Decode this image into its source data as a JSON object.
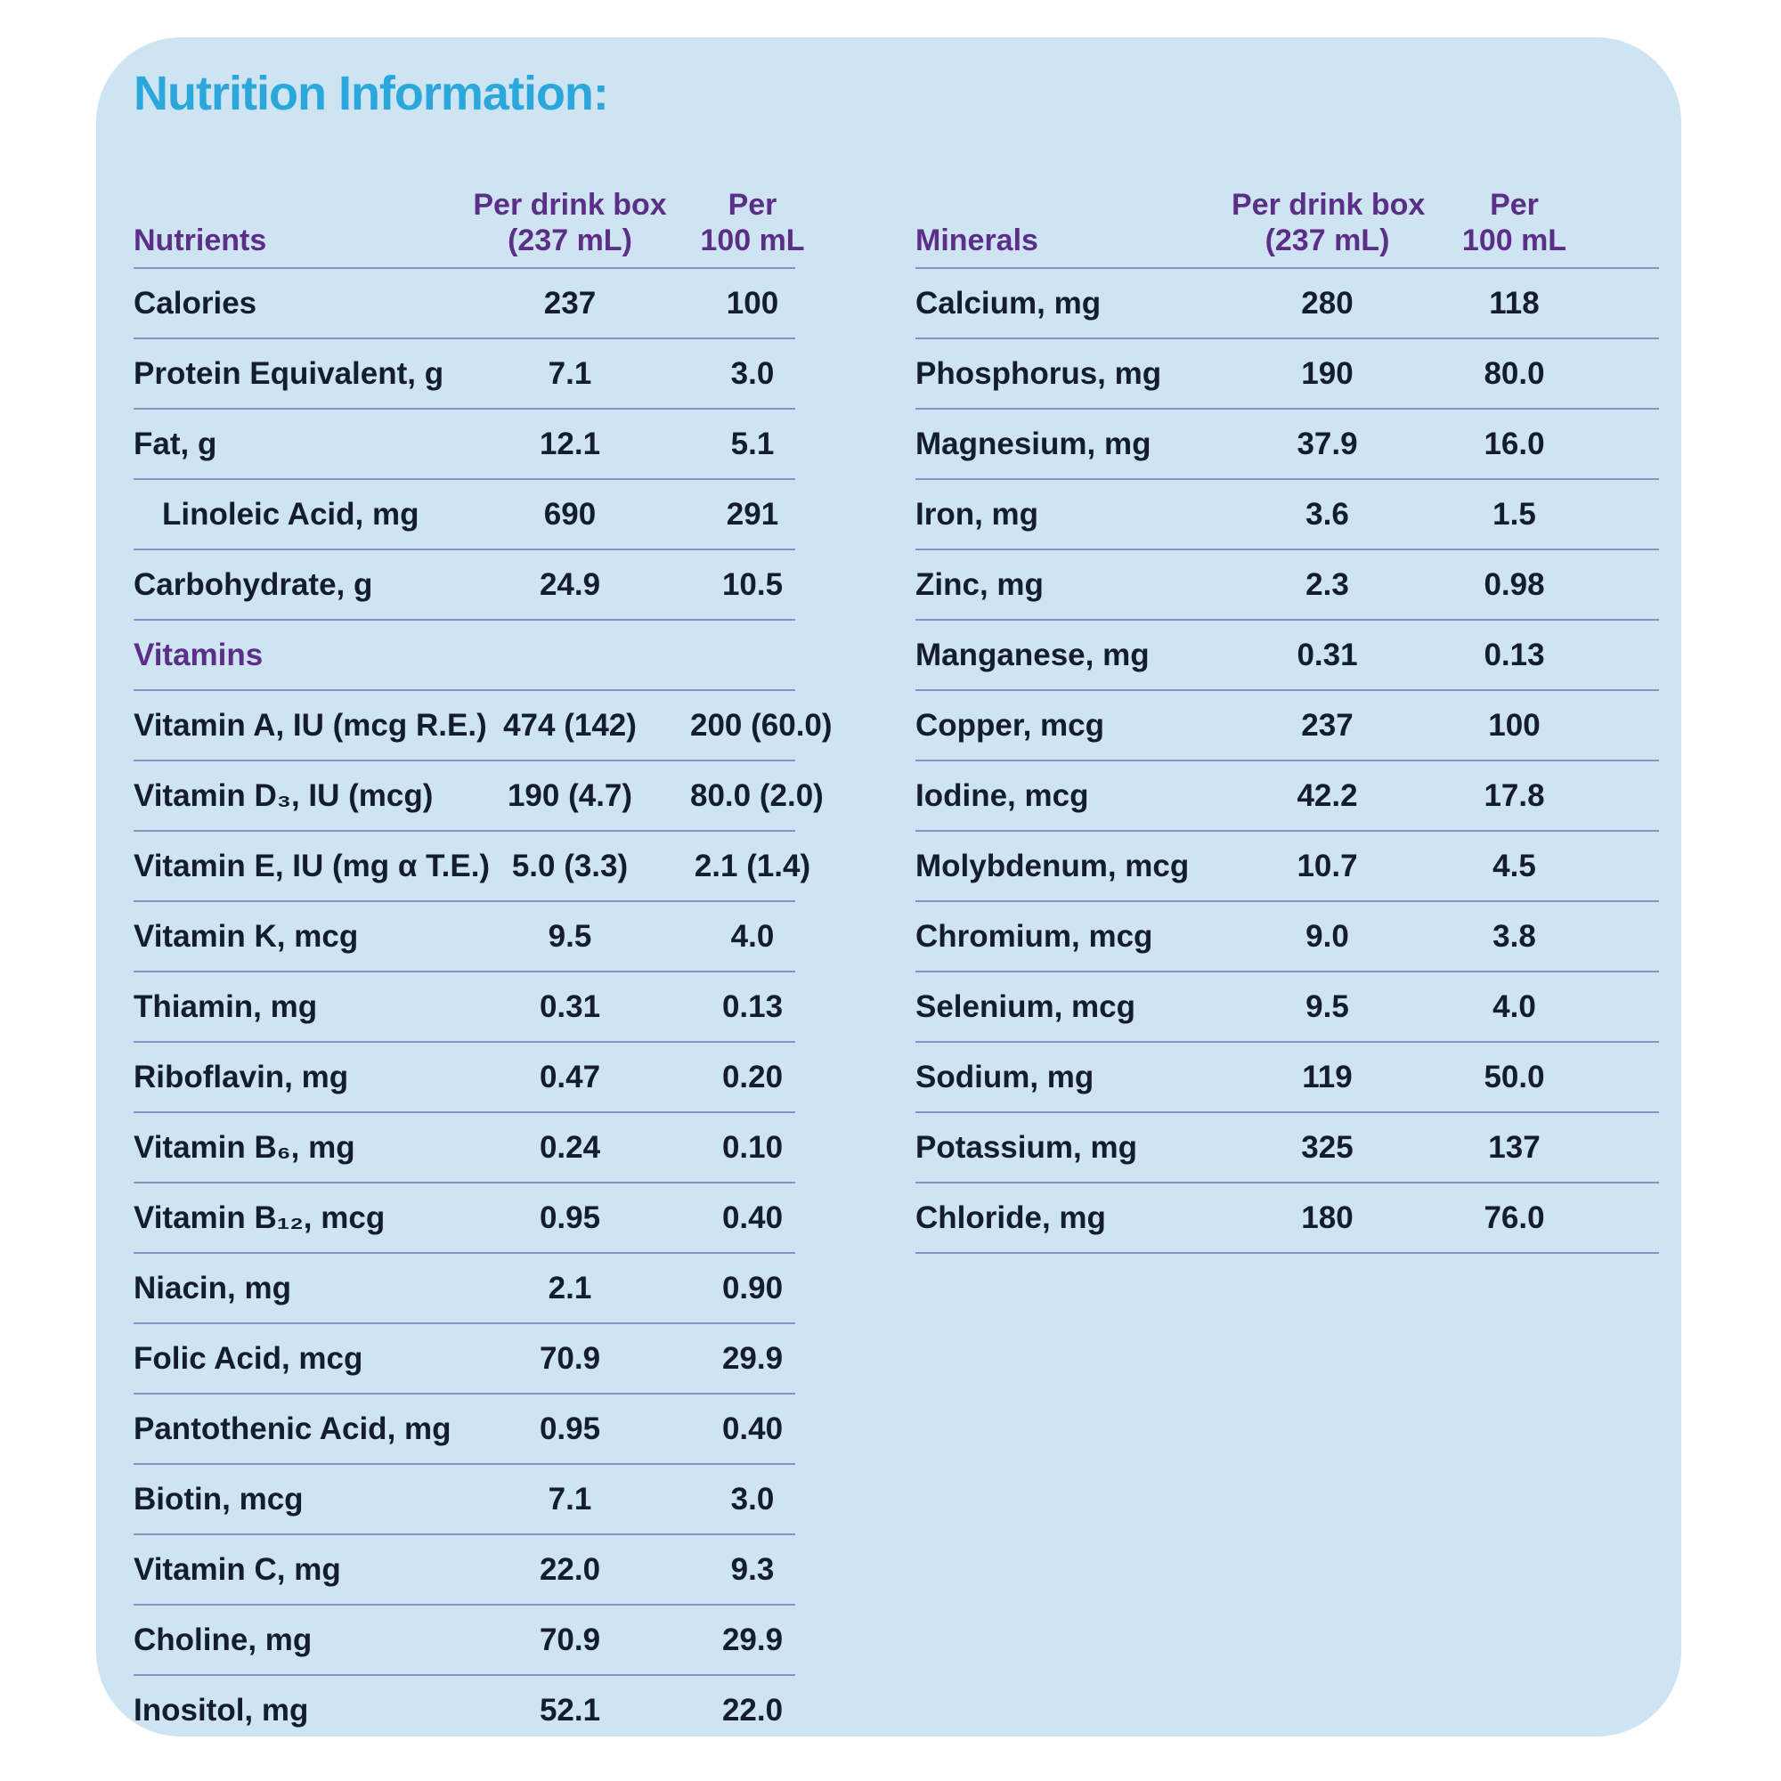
{
  "title": "Nutrition Information:",
  "colors": {
    "accent": "#2ba7dc",
    "purple": "#5b2e87",
    "ink": "#141d30",
    "line": "#8b8fc7",
    "card": "#cee4f3"
  },
  "column_headers": {
    "per_box_line1": "Per drink box",
    "per_box_line2": "(237 mL)",
    "per_100_line1": "Per",
    "per_100_line2": "100 mL"
  },
  "tables": [
    {
      "heading": "Nutrients",
      "rows": [
        {
          "label": "Calories",
          "per_box": "237",
          "per_100": "100"
        },
        {
          "label": "Protein Equivalent, g",
          "per_box": "7.1",
          "per_100": "3.0"
        },
        {
          "label": "Fat, g",
          "per_box": "12.1",
          "per_100": "5.1"
        },
        {
          "label": "Linoleic Acid, mg",
          "per_box": "690",
          "per_100": "291",
          "indent": true
        },
        {
          "label": "Carbohydrate, g",
          "per_box": "24.9",
          "per_100": "10.5"
        },
        {
          "label": "Vitamins",
          "section": true
        },
        {
          "label": "Vitamin A, IU (mcg R.E.)",
          "per_box": "474 (142)",
          "per_100": "200 (60.0)"
        },
        {
          "label": "Vitamin D₃, IU (mcg)",
          "per_box": "190 (4.7)",
          "per_100": "80.0 (2.0)"
        },
        {
          "label": "Vitamin E, IU (mg α T.E.)",
          "per_box": "5.0 (3.3)",
          "per_100": "2.1 (1.4)"
        },
        {
          "label": "Vitamin K, mcg",
          "per_box": "9.5",
          "per_100": "4.0"
        },
        {
          "label": "Thiamin, mg",
          "per_box": "0.31",
          "per_100": "0.13"
        },
        {
          "label": "Riboflavin, mg",
          "per_box": "0.47",
          "per_100": "0.20"
        },
        {
          "label": "Vitamin B₆, mg",
          "per_box": "0.24",
          "per_100": "0.10"
        },
        {
          "label": "Vitamin B₁₂, mcg",
          "per_box": "0.95",
          "per_100": "0.40"
        },
        {
          "label": "Niacin, mg",
          "per_box": "2.1",
          "per_100": "0.90"
        },
        {
          "label": "Folic Acid, mcg",
          "per_box": "70.9",
          "per_100": "29.9"
        },
        {
          "label": "Pantothenic Acid, mg",
          "per_box": "0.95",
          "per_100": "0.40"
        },
        {
          "label": "Biotin, mcg",
          "per_box": "7.1",
          "per_100": "3.0"
        },
        {
          "label": "Vitamin C, mg",
          "per_box": "22.0",
          "per_100": "9.3"
        },
        {
          "label": "Choline, mg",
          "per_box": "70.9",
          "per_100": "29.9"
        },
        {
          "label": "Inositol, mg",
          "per_box": "52.1",
          "per_100": "22.0",
          "last_open": true
        }
      ]
    },
    {
      "heading": "Minerals",
      "rows": [
        {
          "label": "Calcium, mg",
          "per_box": "280",
          "per_100": "118"
        },
        {
          "label": "Phosphorus, mg",
          "per_box": "190",
          "per_100": "80.0"
        },
        {
          "label": "Magnesium, mg",
          "per_box": "37.9",
          "per_100": "16.0"
        },
        {
          "label": "Iron, mg",
          "per_box": "3.6",
          "per_100": "1.5"
        },
        {
          "label": "Zinc, mg",
          "per_box": "2.3",
          "per_100": "0.98"
        },
        {
          "label": "Manganese, mg",
          "per_box": "0.31",
          "per_100": "0.13"
        },
        {
          "label": "Copper, mcg",
          "per_box": "237",
          "per_100": "100"
        },
        {
          "label": "Iodine, mcg",
          "per_box": "42.2",
          "per_100": "17.8"
        },
        {
          "label": "Molybdenum, mcg",
          "per_box": "10.7",
          "per_100": "4.5"
        },
        {
          "label": "Chromium, mcg",
          "per_box": "9.0",
          "per_100": "3.8"
        },
        {
          "label": "Selenium, mcg",
          "per_box": "9.5",
          "per_100": "4.0"
        },
        {
          "label": "Sodium, mg",
          "per_box": "119",
          "per_100": "50.0"
        },
        {
          "label": "Potassium, mg",
          "per_box": "325",
          "per_100": "137"
        },
        {
          "label": "Chloride, mg",
          "per_box": "180",
          "per_100": "76.0"
        }
      ]
    }
  ]
}
